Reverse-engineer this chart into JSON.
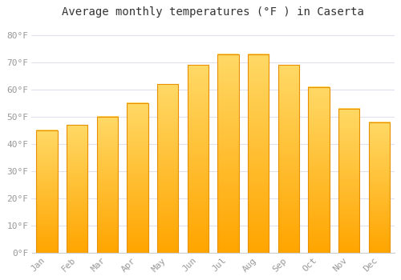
{
  "title": "Average monthly temperatures (°F ) in Caserta",
  "months": [
    "Jan",
    "Feb",
    "Mar",
    "Apr",
    "May",
    "Jun",
    "Jul",
    "Aug",
    "Sep",
    "Oct",
    "Nov",
    "Dec"
  ],
  "values": [
    45,
    47,
    50,
    55,
    62,
    69,
    73,
    73,
    69,
    61,
    53,
    48
  ],
  "bar_color_top": "#FFD966",
  "bar_color_bottom": "#FFA500",
  "bar_edge_color": "#E89000",
  "background_color": "#FFFFFF",
  "plot_bg_color": "#FFFFFF",
  "grid_color": "#E0E0EE",
  "ylim": [
    0,
    84
  ],
  "yticks": [
    0,
    10,
    20,
    30,
    40,
    50,
    60,
    70,
    80
  ],
  "ytick_labels": [
    "0°F",
    "10°F",
    "20°F",
    "30°F",
    "40°F",
    "50°F",
    "60°F",
    "70°F",
    "80°F"
  ],
  "title_fontsize": 10,
  "tick_fontsize": 8,
  "tick_color": "#999999",
  "bar_width": 0.7
}
